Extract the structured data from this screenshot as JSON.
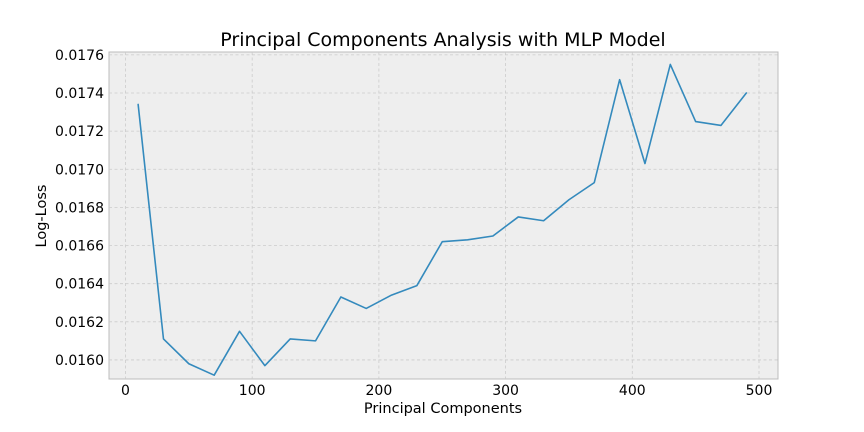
{
  "chart_data": {
    "type": "line",
    "title": "Principal Components Analysis with MLP Model",
    "xlabel": "Principal Components",
    "ylabel": "Log-Loss",
    "xlim": [
      -13,
      515
    ],
    "ylim": [
      0.0159,
      0.017615
    ],
    "x_ticks": [
      0,
      100,
      200,
      300,
      400,
      500
    ],
    "y_ticks": [
      0.016,
      0.0162,
      0.0164,
      0.0166,
      0.0168,
      0.017,
      0.0172,
      0.0174,
      0.0176
    ],
    "y_tick_decimals": 4,
    "grid": true,
    "legend": "none",
    "series": [
      {
        "color": "#348abd",
        "x": [
          10,
          30,
          50,
          70,
          90,
          110,
          130,
          150,
          170,
          190,
          210,
          230,
          250,
          270,
          290,
          310,
          330,
          350,
          370,
          390,
          410,
          430,
          450,
          470,
          490
        ],
        "y": [
          0.01734,
          0.01611,
          0.01598,
          0.01592,
          0.01615,
          0.01597,
          0.01611,
          0.0161,
          0.01633,
          0.01627,
          0.01634,
          0.01639,
          0.01662,
          0.01663,
          0.01665,
          0.01675,
          0.01673,
          0.01684,
          0.01693,
          0.01747,
          0.01703,
          0.01755,
          0.01725,
          0.01723,
          0.0174
        ]
      }
    ]
  }
}
